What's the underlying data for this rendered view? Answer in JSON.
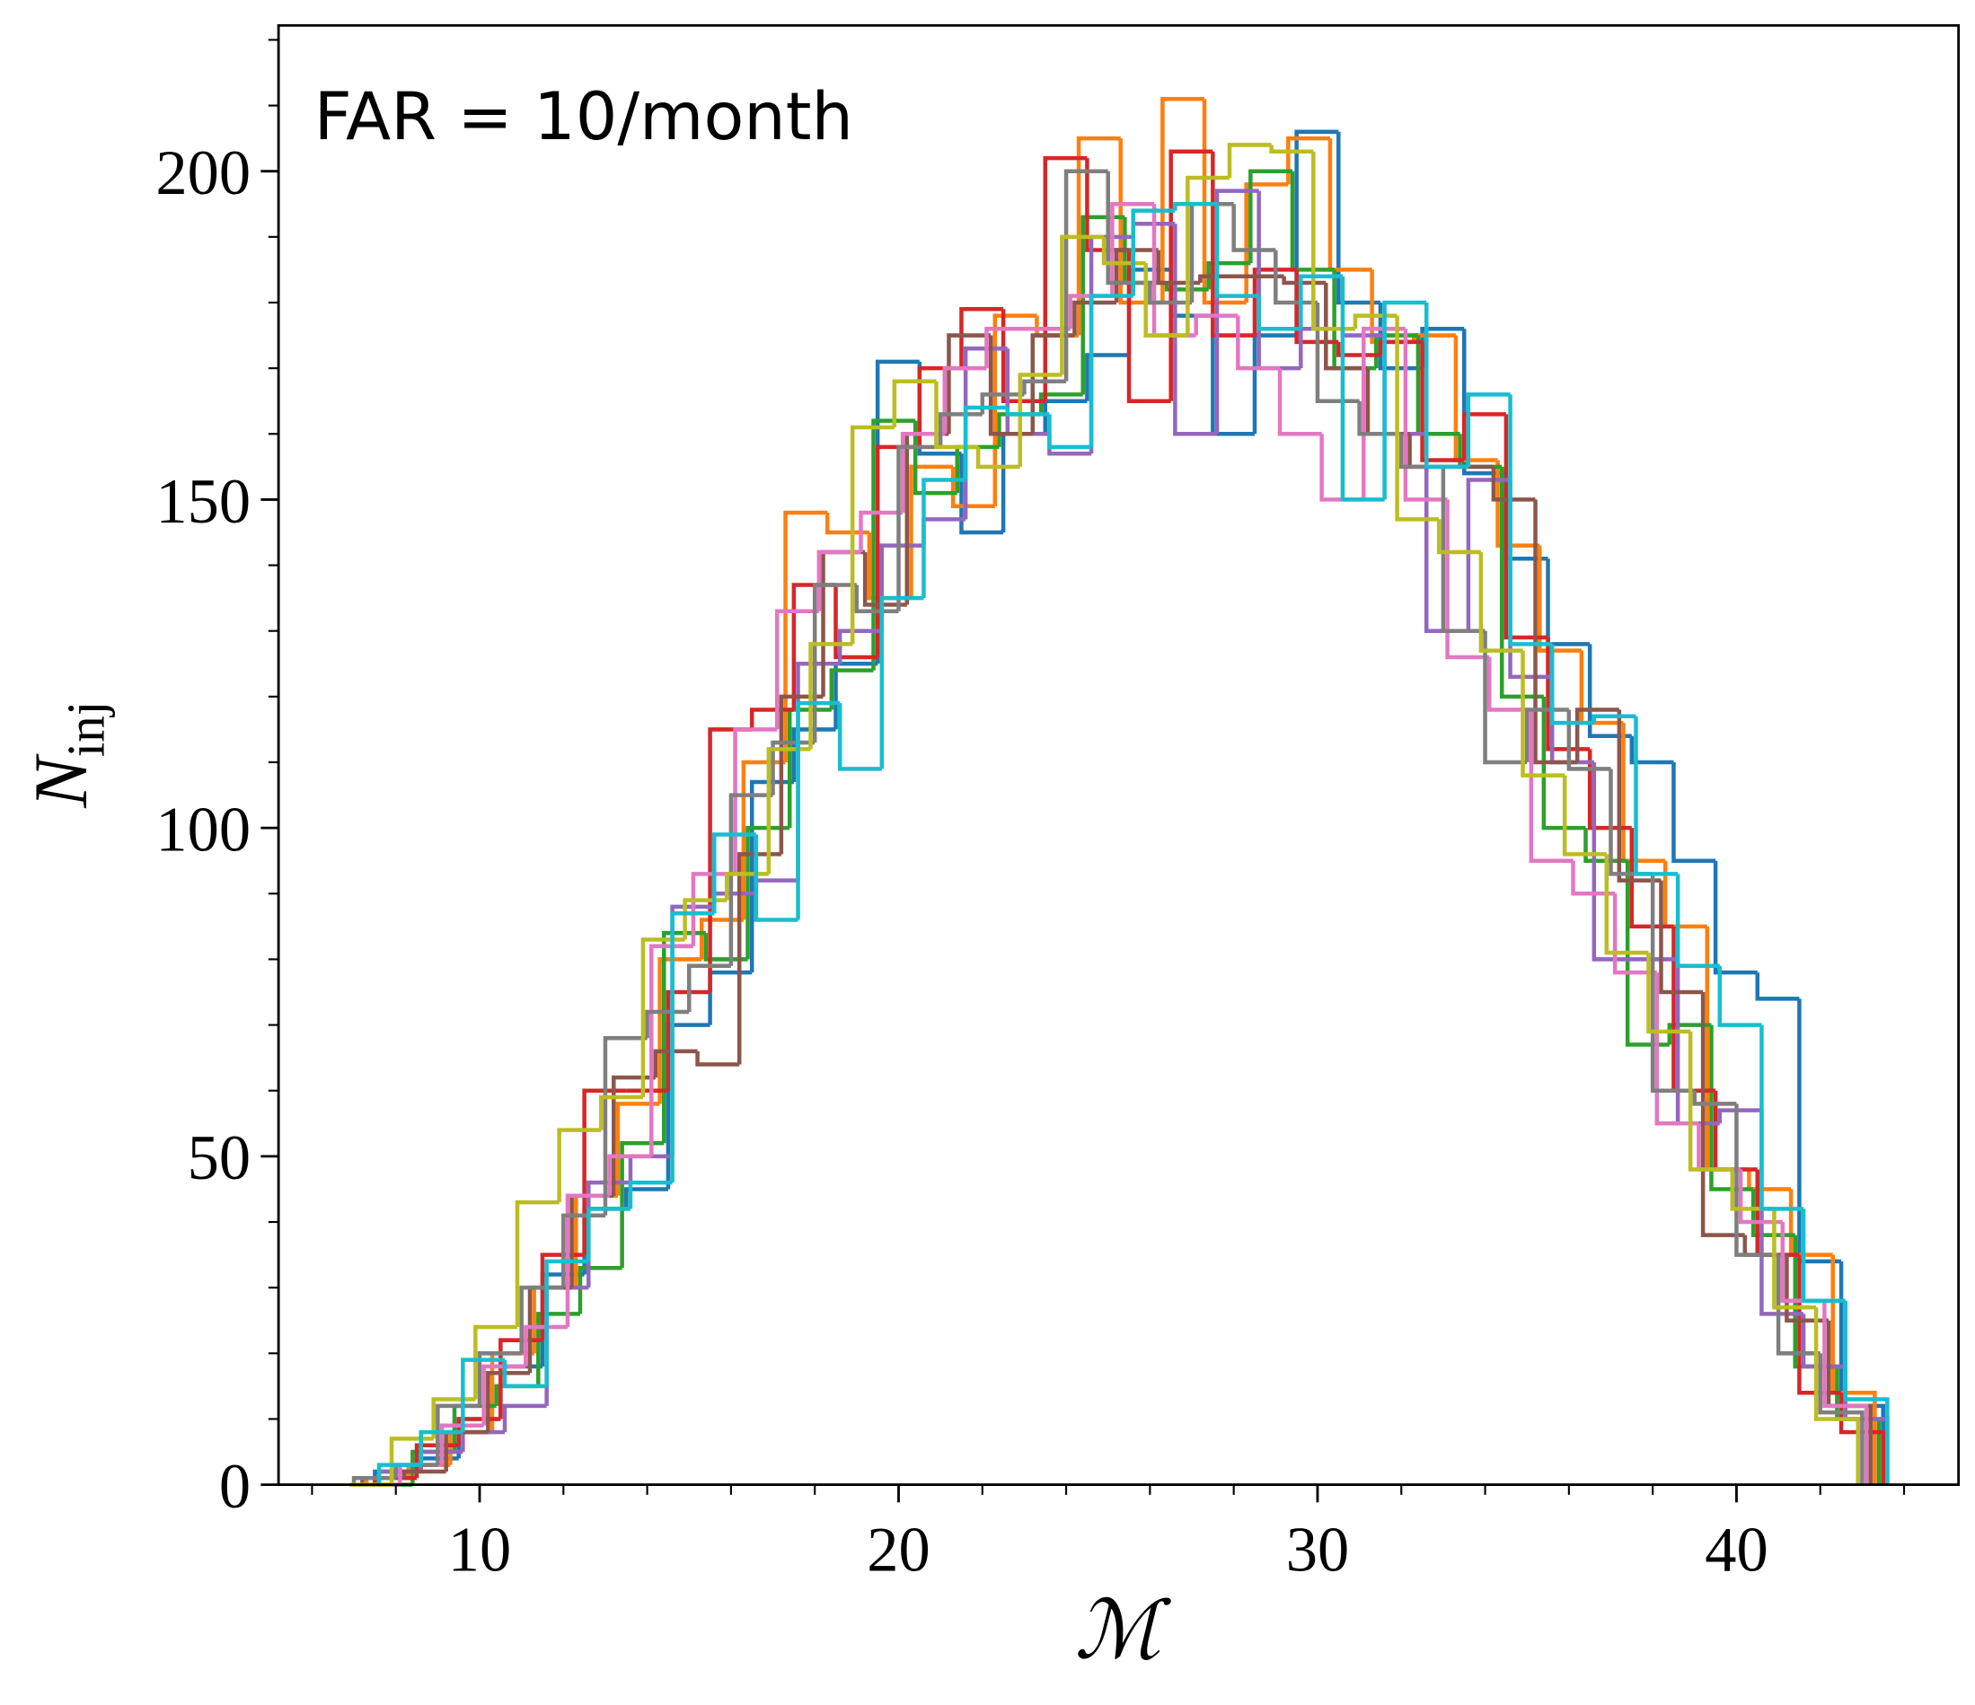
{
  "chart_data": {
    "type": "histogram_step",
    "title": "FAR = 10/month",
    "xlabel": "ℳ",
    "ylabel": {
      "symbol": "N",
      "subscript": "inj"
    },
    "xlim": [
      5.2,
      45.3
    ],
    "ylim": [
      0,
      222.2
    ],
    "xticks": [
      10,
      20,
      30,
      40
    ],
    "yticks": [
      0,
      50,
      100,
      150,
      200
    ],
    "xminorticks": [
      6,
      8,
      12,
      14,
      16,
      18,
      22,
      24,
      26,
      28,
      32,
      34,
      36,
      38,
      42,
      44
    ],
    "yminorticks": [
      10,
      20,
      30,
      40,
      60,
      70,
      80,
      90,
      110,
      120,
      130,
      140,
      160,
      170,
      180,
      190,
      210,
      220
    ],
    "series": [
      {
        "color": "#1f77b4",
        "bins": [
          7.5,
          8.5,
          9.5,
          10.5,
          11.5,
          12.5,
          13.5,
          14.5,
          15.5,
          16.5,
          17.5,
          18.5,
          19.5,
          20.5,
          21.5,
          22.5,
          23.5,
          24.5,
          25.5,
          26.5,
          27.5,
          28.5,
          29.5,
          30.5,
          31.5,
          32.5,
          33.5,
          34.5,
          35.5,
          36.5,
          37.5,
          38.5,
          39.5,
          40.5,
          41.5,
          42.5,
          43.5
        ],
        "values": [
          2,
          4,
          10,
          18,
          32,
          42,
          45,
          70,
          78,
          107,
          115,
          125,
          171,
          157,
          145,
          160,
          165,
          172,
          185,
          178,
          160,
          175,
          206,
          180,
          170,
          176,
          154,
          141,
          128,
          114,
          110,
          95,
          78,
          74,
          34,
          12
        ]
      },
      {
        "color": "#ff7f0e",
        "bins": [
          7.3,
          8.3,
          9.3,
          10.3,
          11.3,
          12.3,
          13.3,
          14.3,
          15.3,
          16.3,
          17.3,
          18.3,
          19.3,
          20.3,
          21.3,
          22.3,
          23.3,
          24.3,
          25.3,
          26.3,
          27.3,
          28.3,
          29.3,
          30.3,
          31.3,
          32.3,
          33.3,
          34.3,
          35.3,
          36.3,
          37.3,
          38.3,
          39.3,
          40.3,
          41.3,
          42.3,
          43.3
        ],
        "values": [
          1,
          3,
          8,
          20,
          30,
          44,
          58,
          80,
          86,
          110,
          148,
          145,
          135,
          155,
          149,
          178,
          175,
          205,
          180,
          211,
          180,
          198,
          205,
          185,
          174,
          175,
          156,
          143,
          127,
          116,
          95,
          85,
          48,
          45,
          35,
          14
        ]
      },
      {
        "color": "#2ca02c",
        "bins": [
          7.4,
          8.4,
          9.4,
          10.4,
          11.4,
          12.4,
          13.4,
          14.4,
          15.4,
          16.4,
          17.4,
          18.4,
          19.4,
          20.4,
          21.4,
          22.4,
          23.4,
          24.4,
          25.4,
          26.4,
          27.4,
          28.4,
          29.4,
          30.4,
          31.4,
          32.4,
          33.4,
          34.4,
          35.4,
          36.4,
          37.4,
          38.4,
          39.4,
          40.4,
          41.4,
          42.4,
          43.4
        ],
        "values": [
          0,
          5,
          12,
          15,
          26,
          33,
          52,
          84,
          80,
          100,
          118,
          124,
          162,
          151,
          158,
          163,
          166,
          193,
          183,
          182,
          186,
          200,
          185,
          170,
          175,
          160,
          155,
          120,
          100,
          95,
          67,
          70,
          45,
          38,
          18,
          10
        ]
      },
      {
        "color": "#d62728",
        "bins": [
          7.5,
          8.5,
          9.5,
          10.5,
          11.5,
          12.5,
          13.5,
          14.5,
          15.5,
          16.5,
          17.5,
          18.5,
          19.5,
          20.5,
          21.5,
          22.5,
          23.5,
          24.5,
          25.5,
          26.5,
          27.5,
          28.5,
          29.5,
          30.5,
          31.5,
          32.5,
          33.5,
          34.5,
          35.5,
          36.5,
          37.5,
          38.5,
          39.5,
          40.5,
          41.5,
          42.5,
          43.5
        ],
        "values": [
          1,
          6,
          10,
          22,
          35,
          60,
          60,
          75,
          115,
          118,
          137,
          126,
          158,
          170,
          179,
          165,
          202,
          188,
          165,
          203,
          175,
          185,
          174,
          172,
          174,
          156,
          163,
          129,
          112,
          100,
          85,
          60,
          48,
          35,
          14,
          8
        ]
      },
      {
        "color": "#9467bd",
        "bins": [
          7.6,
          8.6,
          9.6,
          10.6,
          11.6,
          12.6,
          13.6,
          14.6,
          15.6,
          16.6,
          17.6,
          18.6,
          19.6,
          20.6,
          21.6,
          22.6,
          23.6,
          24.6,
          25.6,
          26.6,
          27.6,
          28.6,
          29.6,
          30.6,
          31.6,
          32.6,
          33.6,
          34.6,
          35.6,
          36.6,
          37.6,
          38.6,
          39.6,
          40.6,
          41.6,
          42.6,
          43.6
        ],
        "values": [
          2,
          5,
          8,
          12,
          30,
          46,
          50,
          88,
          90,
          92,
          125,
          130,
          143,
          147,
          173,
          160,
          157,
          190,
          192,
          160,
          197,
          170,
          176,
          175,
          160,
          130,
          153,
          123,
          110,
          80,
          80,
          55,
          57,
          26,
          18,
          10
        ]
      },
      {
        "color": "#8c564b",
        "bins": [
          7.2,
          8.2,
          9.2,
          10.2,
          11.2,
          12.2,
          13.2,
          14.2,
          15.2,
          16.2,
          17.2,
          18.2,
          19.2,
          20.2,
          21.2,
          22.2,
          23.2,
          24.2,
          25.2,
          26.2,
          27.2,
          28.2,
          29.2,
          30.2,
          31.2,
          32.2,
          33.2,
          34.2,
          35.2,
          36.2,
          37.2,
          38.2,
          39.2,
          40.2,
          41.2,
          42.2,
          43.2
        ],
        "values": [
          1,
          2,
          8,
          17,
          30,
          44,
          62,
          66,
          64,
          96,
          120,
          142,
          134,
          160,
          175,
          160,
          175,
          180,
          188,
          183,
          184,
          184,
          183,
          170,
          160,
          155,
          155,
          150,
          110,
          118,
          92,
          75,
          38,
          35,
          25,
          12
        ]
      },
      {
        "color": "#e377c2",
        "bins": [
          7.1,
          8.1,
          9.1,
          10.1,
          11.1,
          12.1,
          13.1,
          14.1,
          15.1,
          16.1,
          17.1,
          18.1,
          19.1,
          20.1,
          21.1,
          22.1,
          23.1,
          24.1,
          25.1,
          26.1,
          27.1,
          28.1,
          29.1,
          30.1,
          31.1,
          32.1,
          33.1,
          34.1,
          35.1,
          36.1,
          37.1,
          38.1,
          39.1,
          40.1,
          41.1,
          42.1,
          43.1
        ],
        "values": [
          0,
          3,
          9,
          18,
          24,
          44,
          50,
          82,
          93,
          115,
          133,
          142,
          148,
          160,
          170,
          176,
          176,
          181,
          195,
          175,
          178,
          170,
          160,
          150,
          176,
          150,
          126,
          118,
          95,
          90,
          78,
          55,
          48,
          40,
          28,
          12
        ]
      },
      {
        "color": "#7f7f7f",
        "bins": [
          7.0,
          8.0,
          9.0,
          10.0,
          11.0,
          12.0,
          13.0,
          14.0,
          15.0,
          16.0,
          17.0,
          18.0,
          19.0,
          20.0,
          21.0,
          22.0,
          23.0,
          24.0,
          25.0,
          26.0,
          27.0,
          28.0,
          29.0,
          30.0,
          31.0,
          32.0,
          33.0,
          34.0,
          35.0,
          36.0,
          37.0,
          38.0,
          39.0,
          40.0,
          41.0,
          42.0,
          43.0
        ],
        "values": [
          1,
          3,
          12,
          20,
          30,
          41,
          68,
          72,
          79,
          105,
          113,
          137,
          133,
          158,
          163,
          166,
          168,
          200,
          183,
          180,
          195,
          188,
          180,
          165,
          160,
          155,
          130,
          110,
          118,
          109,
          93,
          60,
          58,
          35,
          20,
          11
        ]
      },
      {
        "color": "#bcbd22",
        "bins": [
          6.9,
          7.9,
          8.9,
          9.9,
          10.9,
          11.9,
          12.9,
          13.9,
          14.9,
          15.9,
          16.9,
          17.9,
          18.9,
          19.9,
          20.9,
          21.9,
          22.9,
          23.9,
          24.9,
          25.9,
          26.9,
          27.9,
          28.9,
          29.9,
          30.9,
          31.9,
          32.9,
          33.9,
          34.9,
          35.9,
          36.9,
          37.9,
          38.9,
          39.9,
          40.9,
          41.9,
          42.9
        ],
        "values": [
          0,
          7,
          13,
          24,
          43,
          54,
          59,
          83,
          89,
          93,
          112,
          128,
          161,
          168,
          158,
          155,
          169,
          190,
          186,
          175,
          199,
          204,
          203,
          176,
          178,
          147,
          142,
          127,
          108,
          96,
          81,
          69,
          48,
          42,
          27,
          10
        ]
      },
      {
        "color": "#17becf",
        "bins": [
          7.6,
          8.6,
          9.6,
          10.6,
          11.6,
          12.6,
          13.6,
          14.6,
          15.6,
          16.6,
          17.6,
          18.6,
          19.6,
          20.6,
          21.6,
          22.6,
          23.6,
          24.6,
          25.6,
          26.6,
          27.6,
          28.6,
          29.6,
          30.6,
          31.6,
          32.6,
          33.6,
          34.6,
          35.6,
          36.6,
          37.6,
          38.6,
          39.6,
          40.6,
          41.6,
          42.6,
          43.6
        ],
        "values": [
          3,
          8,
          19,
          15,
          34,
          42,
          46,
          87,
          99,
          86,
          119,
          109,
          135,
          153,
          164,
          163,
          158,
          181,
          194,
          195,
          181,
          176,
          184,
          150,
          180,
          155,
          166,
          128,
          116,
          117,
          93,
          79,
          70,
          42,
          28,
          13
        ]
      }
    ]
  }
}
